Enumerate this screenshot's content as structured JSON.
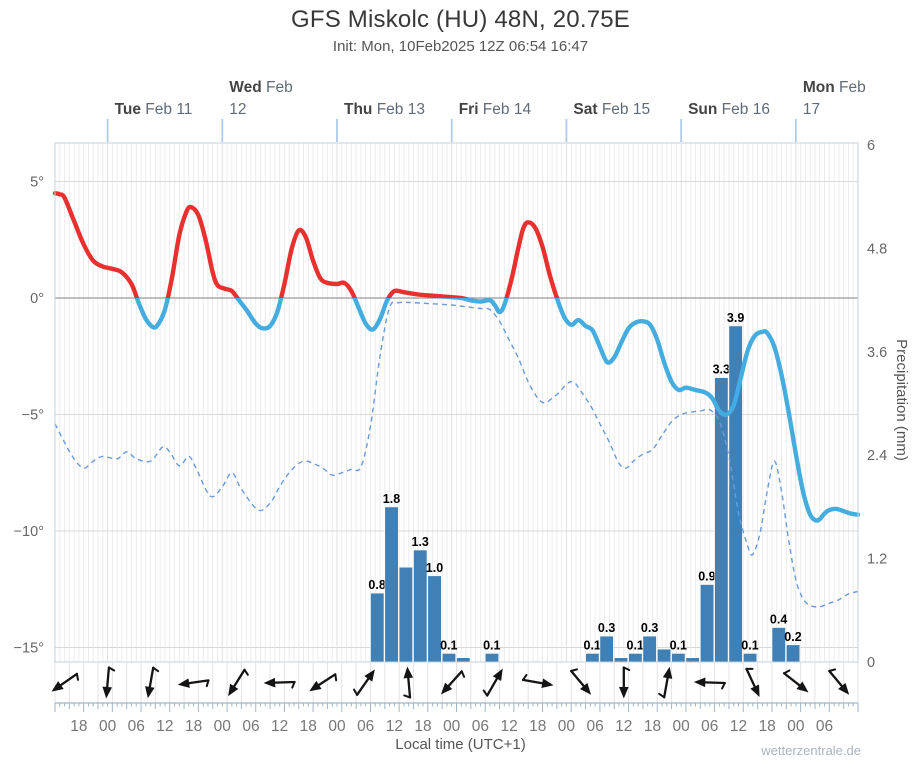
{
  "header": {
    "title": "GFS Miskolc (HU) 48N, 20.75E",
    "subtitle": "Init: Mon, 10Feb2025 12Z 06:54 16:47"
  },
  "chart_data": {
    "type": "meteogram: line (temperature, dew point) + bar (precipitation) + wind arrows",
    "title": "GFS Miskolc (HU) 48N, 20.75E",
    "subtitle": "Init: Mon, 10Feb2025 12Z 06:54 16:47",
    "watermark": "wetterzentrale.de",
    "time_axis": {
      "label": "Local time (UTC+1)",
      "start": "Mon 10 Feb 2025 13:00 local",
      "hours_total": 168,
      "tick_first_hour": 5,
      "tick_step_hours": 6,
      "tick_labels": [
        "18",
        "00",
        "06",
        "12",
        "18",
        "00",
        "06",
        "12",
        "18",
        "00",
        "06",
        "12",
        "18",
        "00",
        "06",
        "12",
        "18",
        "00",
        "06",
        "12",
        "18",
        "00",
        "06",
        "12",
        "18",
        "00",
        "06"
      ],
      "days": [
        {
          "hour": 11,
          "bold": "Tue",
          "rest": "Feb 11"
        },
        {
          "hour": 35,
          "bold": "Wed",
          "rest": "Feb",
          "line2": "12"
        },
        {
          "hour": 59,
          "bold": "Thu",
          "rest": "Feb 13"
        },
        {
          "hour": 83,
          "bold": "Fri",
          "rest": "Feb 14"
        },
        {
          "hour": 107,
          "bold": "Sat",
          "rest": "Feb 15"
        },
        {
          "hour": 131,
          "bold": "Sun",
          "rest": "Feb 16"
        },
        {
          "hour": 155,
          "bold": "Mon",
          "rest": "Feb",
          "line2": "17"
        }
      ]
    },
    "temp_axis": {
      "unit": "degC",
      "ticks": [
        {
          "label": "5°",
          "value": 5
        },
        {
          "label": "0°",
          "value": 0
        },
        {
          "label": "−5°",
          "value": -5
        },
        {
          "label": "−10°",
          "value": -10
        },
        {
          "label": "−15°",
          "value": -15
        }
      ],
      "range_visible": [
        -15.6,
        6.7
      ]
    },
    "precip_axis": {
      "label": "Precipitation (mm)",
      "ticks": [
        {
          "label": "6",
          "value": 6
        },
        {
          "label": "4.8",
          "value": 4.8
        },
        {
          "label": "3.6",
          "value": 3.6
        },
        {
          "label": "2.4",
          "value": 2.4
        },
        {
          "label": "1.2",
          "value": 1.2
        },
        {
          "label": "0",
          "value": 0
        }
      ],
      "range": [
        0,
        6
      ]
    },
    "series": [
      {
        "name": "temperature_2m",
        "style": "solid",
        "color_above_zero": "#e8312e",
        "color_below_zero": "#45ace0",
        "points": [
          [
            0,
            4.5
          ],
          [
            1,
            4.45
          ],
          [
            2,
            4.3
          ],
          [
            4,
            3.3
          ],
          [
            6,
            2.3
          ],
          [
            8,
            1.6
          ],
          [
            10,
            1.35
          ],
          [
            12,
            1.25
          ],
          [
            14,
            1.1
          ],
          [
            16,
            0.6
          ],
          [
            17.5,
            -0.2
          ],
          [
            19,
            -0.9
          ],
          [
            20.5,
            -1.25
          ],
          [
            21.5,
            -1.15
          ],
          [
            23,
            -0.5
          ],
          [
            24.5,
            0.9
          ],
          [
            26,
            2.7
          ],
          [
            27.5,
            3.7
          ],
          [
            28.5,
            3.9
          ],
          [
            30,
            3.55
          ],
          [
            31.5,
            2.5
          ],
          [
            33,
            1.1
          ],
          [
            34,
            0.55
          ],
          [
            35.5,
            0.4
          ],
          [
            37,
            0.3
          ],
          [
            38.5,
            -0.1
          ],
          [
            40,
            -0.5
          ],
          [
            42,
            -1.1
          ],
          [
            43.5,
            -1.3
          ],
          [
            45,
            -1.2
          ],
          [
            46.5,
            -0.6
          ],
          [
            48,
            0.6
          ],
          [
            49.5,
            2.1
          ],
          [
            51,
            2.9
          ],
          [
            52.5,
            2.6
          ],
          [
            54,
            1.6
          ],
          [
            55.5,
            0.85
          ],
          [
            57,
            0.65
          ],
          [
            59,
            0.6
          ],
          [
            60.5,
            0.65
          ],
          [
            62,
            0.3
          ],
          [
            63.5,
            -0.4
          ],
          [
            65,
            -1.1
          ],
          [
            66.5,
            -1.35
          ],
          [
            68,
            -0.9
          ],
          [
            69.5,
            -0.1
          ],
          [
            71,
            0.3
          ],
          [
            73,
            0.25
          ],
          [
            76,
            0.15
          ],
          [
            79,
            0.1
          ],
          [
            82,
            0.05
          ],
          [
            85,
            0
          ],
          [
            87,
            -0.1
          ],
          [
            89,
            -0.15
          ],
          [
            91,
            -0.1
          ],
          [
            92,
            -0.3
          ],
          [
            93,
            -0.6
          ],
          [
            94,
            -0.3
          ],
          [
            95.5,
            0.8
          ],
          [
            97,
            2.2
          ],
          [
            98,
            3
          ],
          [
            99,
            3.25
          ],
          [
            100.5,
            3
          ],
          [
            102,
            2.2
          ],
          [
            103.5,
            1
          ],
          [
            105,
            0
          ],
          [
            106.5,
            -0.8
          ],
          [
            108,
            -1.15
          ],
          [
            109.5,
            -0.95
          ],
          [
            111,
            -1.2
          ],
          [
            112.5,
            -1.4
          ],
          [
            114,
            -2.1
          ],
          [
            115.5,
            -2.75
          ],
          [
            117,
            -2.55
          ],
          [
            118.5,
            -1.9
          ],
          [
            120,
            -1.3
          ],
          [
            121.5,
            -1.05
          ],
          [
            123,
            -1
          ],
          [
            124.5,
            -1.15
          ],
          [
            126,
            -1.8
          ],
          [
            127.5,
            -2.8
          ],
          [
            129,
            -3.6
          ],
          [
            130.5,
            -3.95
          ],
          [
            132,
            -3.85
          ],
          [
            134,
            -3.95
          ],
          [
            136,
            -4.05
          ],
          [
            137.5,
            -4.3
          ],
          [
            139,
            -4.85
          ],
          [
            140.5,
            -5
          ],
          [
            142,
            -4.6
          ],
          [
            143.5,
            -3.4
          ],
          [
            145,
            -2.2
          ],
          [
            146.5,
            -1.6
          ],
          [
            148,
            -1.45
          ],
          [
            149,
            -1.5
          ],
          [
            150.5,
            -2.1
          ],
          [
            152,
            -3.3
          ],
          [
            153.5,
            -4.9
          ],
          [
            155,
            -6.7
          ],
          [
            156.5,
            -8.3
          ],
          [
            158,
            -9.3
          ],
          [
            159.5,
            -9.55
          ],
          [
            161,
            -9.25
          ],
          [
            162,
            -9.1
          ],
          [
            163.5,
            -9.05
          ],
          [
            165,
            -9.15
          ],
          [
            166.5,
            -9.25
          ],
          [
            168,
            -9.3
          ]
        ]
      },
      {
        "name": "dew_point",
        "style": "dashed",
        "color": "#6b9bd8",
        "points": [
          [
            0,
            -5.4
          ],
          [
            2,
            -6.2
          ],
          [
            4,
            -6.9
          ],
          [
            6,
            -7.3
          ],
          [
            8,
            -7
          ],
          [
            10,
            -6.8
          ],
          [
            13,
            -6.9
          ],
          [
            15,
            -6.6
          ],
          [
            17,
            -6.9
          ],
          [
            20,
            -7
          ],
          [
            22.5,
            -6.4
          ],
          [
            24,
            -6.6
          ],
          [
            26,
            -7.2
          ],
          [
            28,
            -6.8
          ],
          [
            29.5,
            -7.3
          ],
          [
            32.5,
            -8.5
          ],
          [
            35,
            -8.1
          ],
          [
            37,
            -7.5
          ],
          [
            39,
            -8.2
          ],
          [
            42.5,
            -9.1
          ],
          [
            45,
            -8.8
          ],
          [
            47,
            -8.1
          ],
          [
            49,
            -7.5
          ],
          [
            51,
            -7.1
          ],
          [
            52.5,
            -7
          ],
          [
            54,
            -7.1
          ],
          [
            56,
            -7.3
          ],
          [
            58,
            -7.6
          ],
          [
            60,
            -7.5
          ],
          [
            62,
            -7.35
          ],
          [
            64,
            -7.25
          ],
          [
            66,
            -5.5
          ],
          [
            68,
            -2.5
          ],
          [
            70,
            -0.4
          ],
          [
            72,
            -0.2
          ],
          [
            75,
            -0.2
          ],
          [
            79,
            -0.25
          ],
          [
            83,
            -0.3
          ],
          [
            85,
            -0.35
          ],
          [
            87,
            -0.4
          ],
          [
            89,
            -0.45
          ],
          [
            91,
            -0.5
          ],
          [
            93,
            -1
          ],
          [
            95,
            -1.8
          ],
          [
            97,
            -2.6
          ],
          [
            99,
            -3.6
          ],
          [
            101,
            -4.3
          ],
          [
            102.5,
            -4.5
          ],
          [
            104,
            -4.3
          ],
          [
            105.5,
            -4.05
          ],
          [
            107,
            -3.7
          ],
          [
            108.5,
            -3.6
          ],
          [
            110,
            -4
          ],
          [
            112,
            -4.6
          ],
          [
            114,
            -5.4
          ],
          [
            116,
            -6.2
          ],
          [
            118,
            -7.1
          ],
          [
            119.5,
            -7.3
          ],
          [
            121,
            -7
          ],
          [
            123,
            -6.7
          ],
          [
            125,
            -6.5
          ],
          [
            127,
            -5.9
          ],
          [
            129,
            -5.3
          ],
          [
            131,
            -5
          ],
          [
            133,
            -4.9
          ],
          [
            135,
            -4.85
          ],
          [
            137,
            -4.8
          ],
          [
            139,
            -5.3
          ],
          [
            141,
            -6.8
          ],
          [
            143,
            -9.2
          ],
          [
            145,
            -10.7
          ],
          [
            146,
            -11
          ],
          [
            147.5,
            -10.1
          ],
          [
            149,
            -8.3
          ],
          [
            150.5,
            -7
          ],
          [
            152,
            -8.3
          ],
          [
            153.5,
            -10.4
          ],
          [
            155,
            -12.1
          ],
          [
            156.5,
            -12.9
          ],
          [
            158,
            -13.2
          ],
          [
            160,
            -13.25
          ],
          [
            162,
            -13.1
          ],
          [
            164,
            -12.95
          ],
          [
            166,
            -12.7
          ],
          [
            168,
            -12.6
          ]
        ]
      }
    ],
    "precipitation_bars": {
      "bucket_hours": 3,
      "color": "#4080b4",
      "bars": [
        {
          "hour": 66,
          "value": 0.8,
          "label": "0.8"
        },
        {
          "hour": 69,
          "value": 1.8,
          "label": "1.8"
        },
        {
          "hour": 72,
          "value": 1.1,
          "label": ""
        },
        {
          "hour": 75,
          "value": 1.3,
          "label": "1.3"
        },
        {
          "hour": 78,
          "value": 1.0,
          "label": "1.0"
        },
        {
          "hour": 81,
          "value": 0.1,
          "label": "0.1"
        },
        {
          "hour": 84,
          "value": 0.05,
          "label": ""
        },
        {
          "hour": 90,
          "value": 0.1,
          "label": "0.1"
        },
        {
          "hour": 111,
          "value": 0.1,
          "label": "0.1"
        },
        {
          "hour": 114,
          "value": 0.3,
          "label": "0.3"
        },
        {
          "hour": 117,
          "value": 0.05,
          "label": ""
        },
        {
          "hour": 120,
          "value": 0.1,
          "label": "0.1"
        },
        {
          "hour": 123,
          "value": 0.3,
          "label": "0.3"
        },
        {
          "hour": 126,
          "value": 0.15,
          "label": ""
        },
        {
          "hour": 129,
          "value": 0.1,
          "label": "0.1"
        },
        {
          "hour": 132,
          "value": 0.05,
          "label": ""
        },
        {
          "hour": 135,
          "value": 0.9,
          "label": "0.9"
        },
        {
          "hour": 138,
          "value": 3.3,
          "label": "3.3"
        },
        {
          "hour": 141,
          "value": 3.9,
          "label": "3.9"
        },
        {
          "hour": 144,
          "value": 0.1,
          "label": "0.1"
        },
        {
          "hour": 150,
          "value": 0.4,
          "label": "0.4"
        },
        {
          "hour": 153,
          "value": 0.2,
          "label": "0.2"
        }
      ]
    },
    "wind": {
      "arrows": [
        {
          "hour": 2,
          "direction_deg": 235
        },
        {
          "hour": 11,
          "direction_deg": 185
        },
        {
          "hour": 20,
          "direction_deg": 190
        },
        {
          "hour": 29,
          "direction_deg": 262
        },
        {
          "hour": 38,
          "direction_deg": 212
        },
        {
          "hour": 47,
          "direction_deg": 268
        },
        {
          "hour": 56,
          "direction_deg": 237
        },
        {
          "hour": 65,
          "direction_deg": 35
        },
        {
          "hour": 74,
          "direction_deg": 355
        },
        {
          "hour": 83,
          "direction_deg": 222
        },
        {
          "hour": 92,
          "direction_deg": 30
        },
        {
          "hour": 101,
          "direction_deg": 100
        },
        {
          "hour": 110,
          "direction_deg": 140
        },
        {
          "hour": 119,
          "direction_deg": 180
        },
        {
          "hour": 128,
          "direction_deg": 10
        },
        {
          "hour": 137,
          "direction_deg": 272
        },
        {
          "hour": 146,
          "direction_deg": 155
        },
        {
          "hour": 155,
          "direction_deg": 128
        },
        {
          "hour": 164,
          "direction_deg": 140
        }
      ]
    },
    "colors": {
      "temp_above": "#e8312e",
      "temp_below": "#45ace0",
      "dew_point": "#6b9bd8",
      "bars": "#4080b4",
      "bar_label": "#000000",
      "grid_minor": "#ececec",
      "grid_day": "#e0e0e0",
      "grid_horizontal": "#d8d8d8",
      "zero_line": "#999999",
      "border": "#c6d0da",
      "day_tick": "#aecbe8",
      "arrow": "#141414",
      "ruler": "#9fb6c8",
      "tick_text": "#777777",
      "axis_text": "#666666",
      "day_bold": "#444444",
      "day_rest": "#5f6b76"
    }
  }
}
